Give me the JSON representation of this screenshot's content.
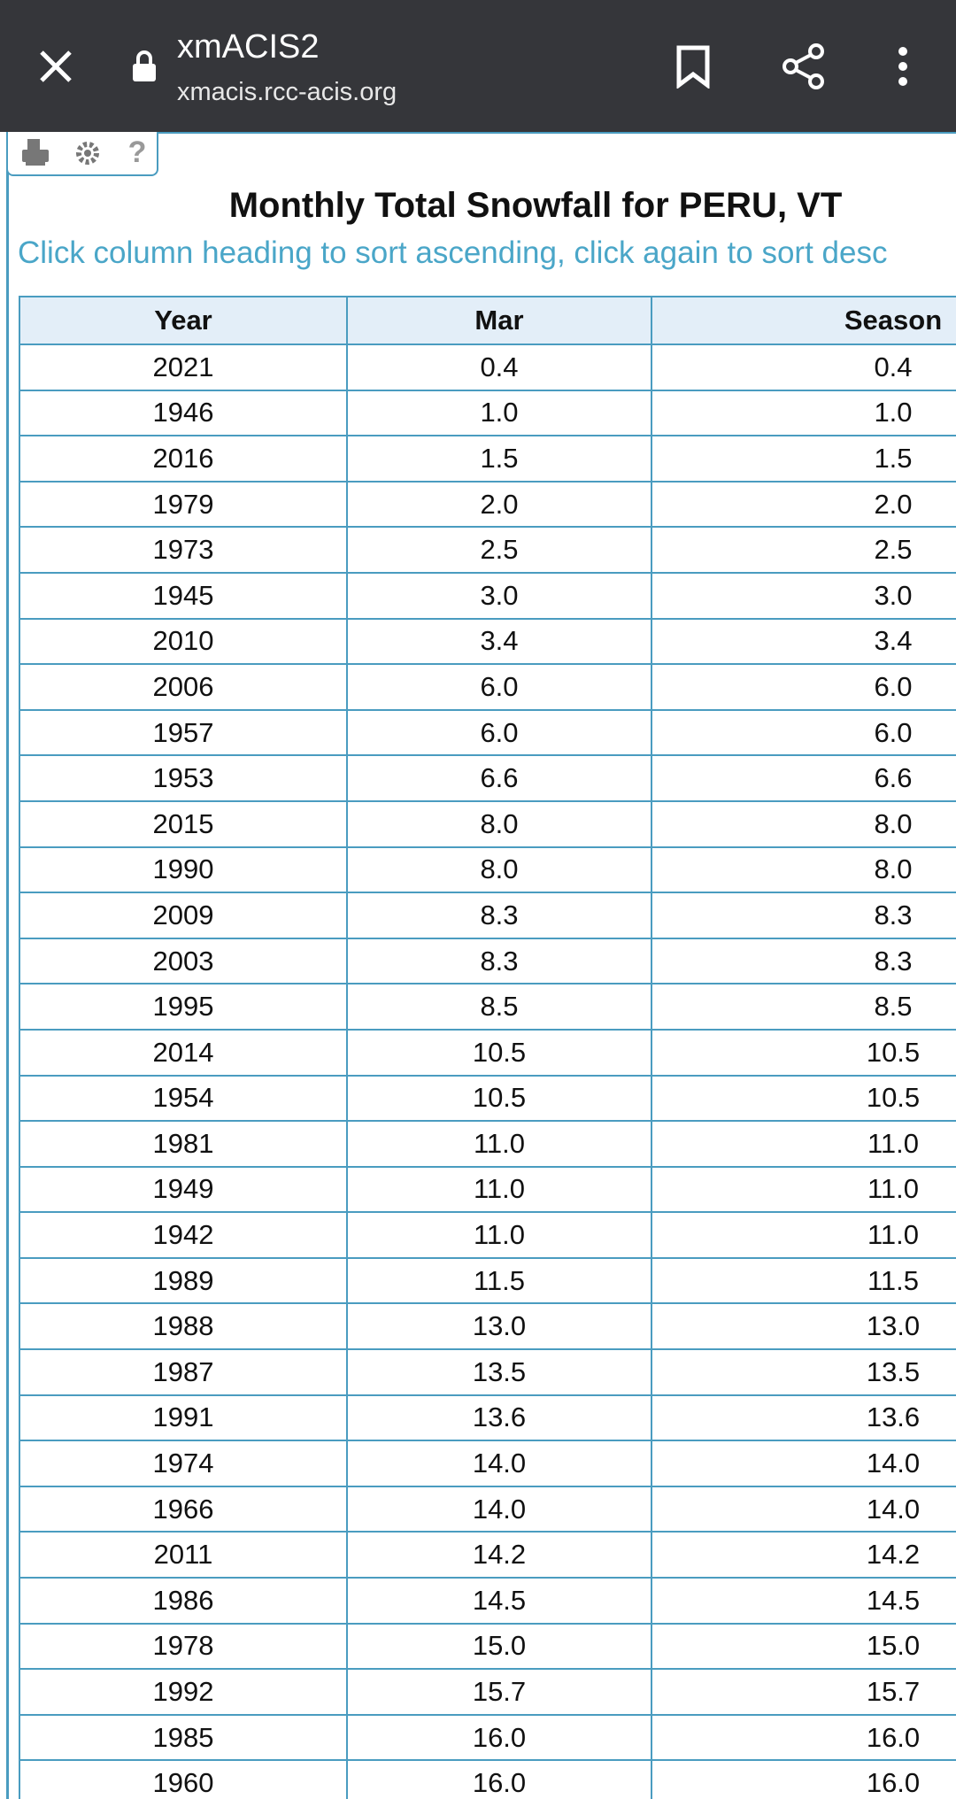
{
  "browser": {
    "title": "xmACIS2",
    "url": "xmacis.rcc-acis.org"
  },
  "page": {
    "title": "Monthly Total Snowfall for PERU, VT",
    "subtitle": "Click column heading to sort ascending, click again to sort desc"
  },
  "table": {
    "columns": [
      "Year",
      "Mar",
      "Season"
    ],
    "rows": [
      [
        "2021",
        "0.4",
        "0.4"
      ],
      [
        "1946",
        "1.0",
        "1.0"
      ],
      [
        "2016",
        "1.5",
        "1.5"
      ],
      [
        "1979",
        "2.0",
        "2.0"
      ],
      [
        "1973",
        "2.5",
        "2.5"
      ],
      [
        "1945",
        "3.0",
        "3.0"
      ],
      [
        "2010",
        "3.4",
        "3.4"
      ],
      [
        "2006",
        "6.0",
        "6.0"
      ],
      [
        "1957",
        "6.0",
        "6.0"
      ],
      [
        "1953",
        "6.6",
        "6.6"
      ],
      [
        "2015",
        "8.0",
        "8.0"
      ],
      [
        "1990",
        "8.0",
        "8.0"
      ],
      [
        "2009",
        "8.3",
        "8.3"
      ],
      [
        "2003",
        "8.3",
        "8.3"
      ],
      [
        "1995",
        "8.5",
        "8.5"
      ],
      [
        "2014",
        "10.5",
        "10.5"
      ],
      [
        "1954",
        "10.5",
        "10.5"
      ],
      [
        "1981",
        "11.0",
        "11.0"
      ],
      [
        "1949",
        "11.0",
        "11.0"
      ],
      [
        "1942",
        "11.0",
        "11.0"
      ],
      [
        "1989",
        "11.5",
        "11.5"
      ],
      [
        "1988",
        "13.0",
        "13.0"
      ],
      [
        "1987",
        "13.5",
        "13.5"
      ],
      [
        "1991",
        "13.6",
        "13.6"
      ],
      [
        "1974",
        "14.0",
        "14.0"
      ],
      [
        "1966",
        "14.0",
        "14.0"
      ],
      [
        "2011",
        "14.2",
        "14.2"
      ],
      [
        "1986",
        "14.5",
        "14.5"
      ],
      [
        "1978",
        "15.0",
        "15.0"
      ],
      [
        "1992",
        "15.7",
        "15.7"
      ],
      [
        "1985",
        "16.0",
        "16.0"
      ],
      [
        "1960",
        "16.0",
        "16.0"
      ]
    ]
  }
}
